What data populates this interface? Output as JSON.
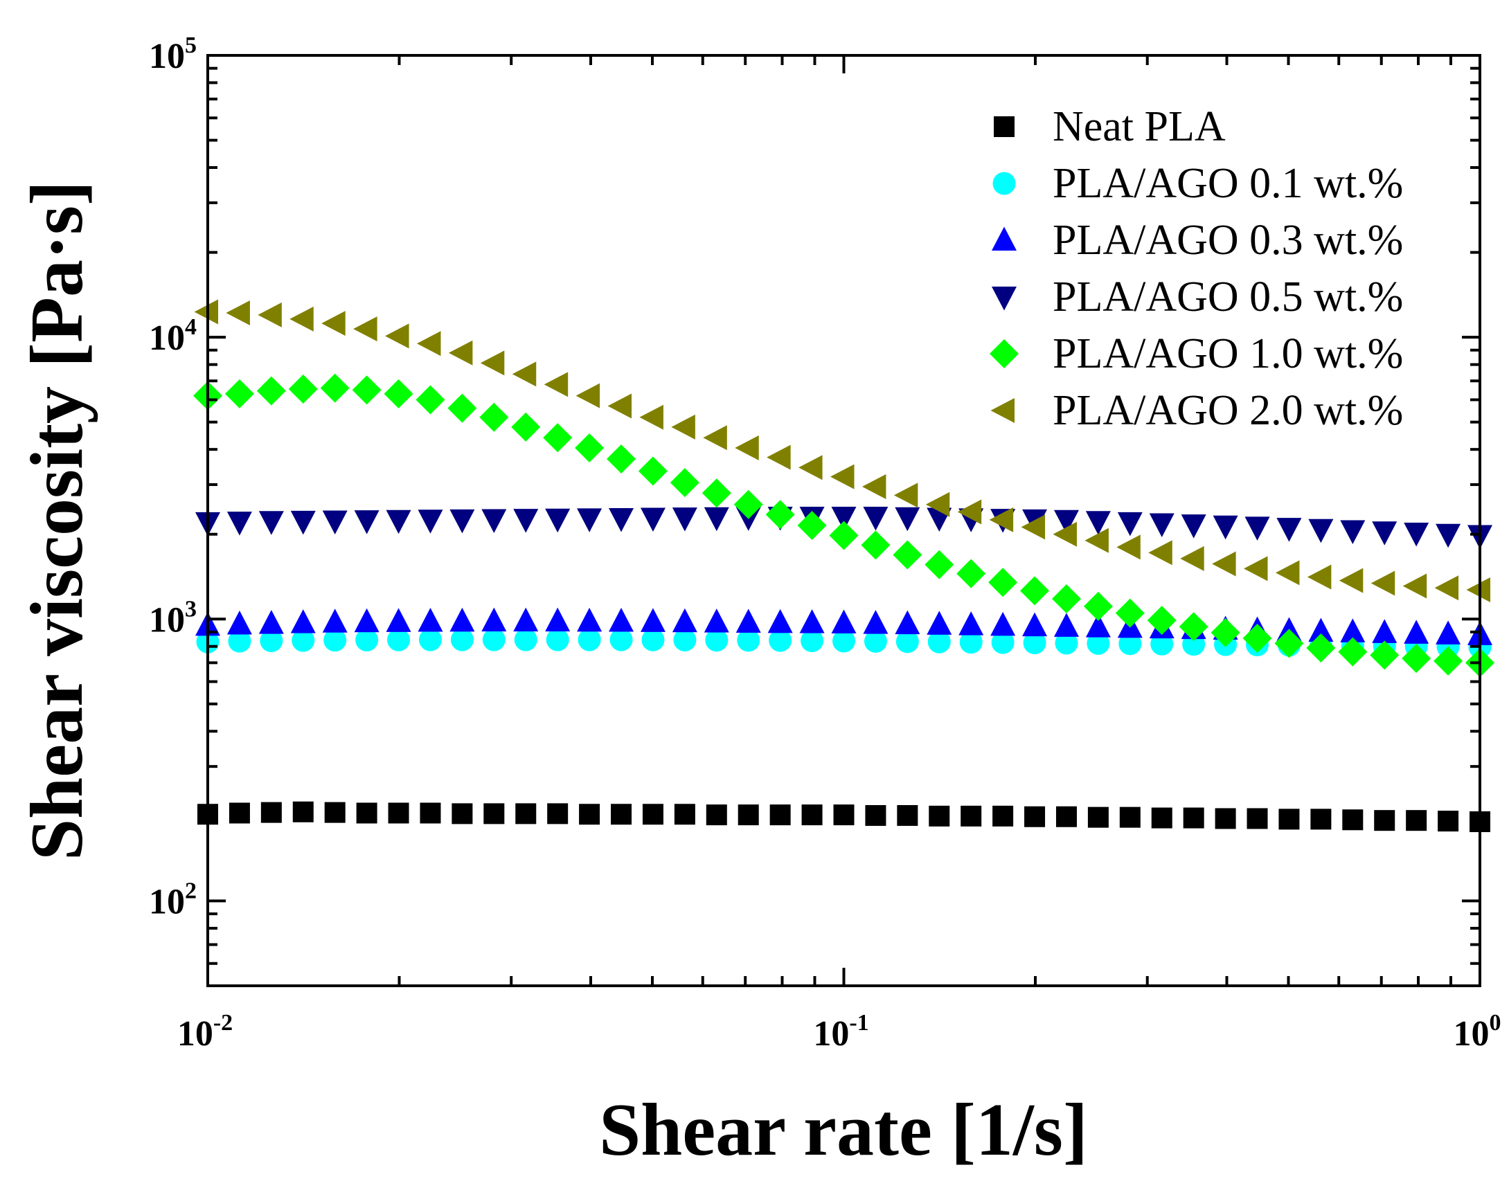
{
  "chart_data": {
    "type": "scatter",
    "xscale": "log",
    "yscale": "log",
    "xlim": [
      0.01,
      1
    ],
    "ylim": [
      50,
      100000
    ],
    "xlabel": "Shear rate [1/s]",
    "ylabel": "Shear viscosity [Pa·s]",
    "xticks": [
      {
        "value": 0.01,
        "base": "10",
        "exp": "-2"
      },
      {
        "value": 0.1,
        "base": "10",
        "exp": "-1"
      },
      {
        "value": 1,
        "base": "10",
        "exp": "0"
      }
    ],
    "yticks": [
      {
        "value": 100,
        "base": "10",
        "exp": "2"
      },
      {
        "value": 1000,
        "base": "10",
        "exp": "3"
      },
      {
        "value": 10000,
        "base": "10",
        "exp": "4"
      },
      {
        "value": 100000,
        "base": "10",
        "exp": "5"
      }
    ],
    "legend_position": "top-right",
    "n_points": 41,
    "series": [
      {
        "name": "Neat PLA",
        "color": "#000000",
        "marker": "square",
        "values": [
          203,
          205,
          206,
          207,
          206,
          205,
          205,
          205,
          204,
          204,
          204,
          204,
          203,
          203,
          203,
          203,
          202,
          202,
          202,
          202,
          202,
          201,
          201,
          200,
          200,
          200,
          199,
          199,
          198,
          198,
          197,
          197,
          196,
          196,
          195,
          195,
          194,
          193,
          193,
          192,
          191
        ]
      },
      {
        "name": "PLA/AGO 0.1 wt.%",
        "color": "#00FFFF",
        "marker": "circle",
        "values": [
          830,
          835,
          838,
          840,
          842,
          843,
          844,
          845,
          845,
          845,
          845,
          845,
          845,
          845,
          844,
          843,
          842,
          841,
          840,
          838,
          836,
          834,
          832,
          830,
          828,
          826,
          824,
          822,
          820,
          818,
          816,
          814,
          812,
          810,
          808,
          806,
          804,
          802,
          800,
          798,
          796
        ]
      },
      {
        "name": "PLA/AGO 0.3 wt.%",
        "color": "#0000FF",
        "marker": "triangle-up",
        "values": [
          950,
          960,
          965,
          970,
          975,
          978,
          980,
          982,
          983,
          984,
          984,
          984,
          983,
          982,
          980,
          978,
          976,
          974,
          972,
          970,
          968,
          965,
          962,
          958,
          954,
          950,
          946,
          942,
          938,
          934,
          930,
          925,
          920,
          915,
          910,
          905,
          900,
          895,
          890,
          885,
          880
        ]
      },
      {
        "name": "PLA/AGO 0.5 wt.%",
        "color": "#000080",
        "marker": "triangle-down",
        "values": [
          2200,
          2210,
          2220,
          2225,
          2230,
          2235,
          2240,
          2245,
          2250,
          2255,
          2260,
          2265,
          2270,
          2275,
          2280,
          2285,
          2290,
          2295,
          2300,
          2300,
          2300,
          2300,
          2290,
          2280,
          2270,
          2260,
          2250,
          2240,
          2220,
          2200,
          2180,
          2160,
          2140,
          2120,
          2100,
          2080,
          2060,
          2040,
          2020,
          2000,
          1980
        ]
      },
      {
        "name": "PLA/AGO 1.0 wt.%",
        "color": "#00FF00",
        "marker": "diamond",
        "values": [
          6200,
          6300,
          6450,
          6550,
          6600,
          6500,
          6300,
          6000,
          5600,
          5200,
          4800,
          4400,
          4050,
          3700,
          3350,
          3050,
          2800,
          2550,
          2350,
          2150,
          1980,
          1830,
          1690,
          1560,
          1450,
          1350,
          1260,
          1180,
          1110,
          1050,
          990,
          940,
          895,
          855,
          820,
          790,
          765,
          745,
          725,
          710,
          700
        ]
      },
      {
        "name": "PLA/AGO 2.0 wt.%",
        "color": "#808000",
        "marker": "triangle-left",
        "values": [
          12300,
          12200,
          12000,
          11600,
          11200,
          10700,
          10100,
          9500,
          8800,
          8100,
          7400,
          6800,
          6200,
          5700,
          5200,
          4800,
          4400,
          4050,
          3750,
          3450,
          3200,
          2950,
          2750,
          2550,
          2400,
          2250,
          2120,
          2000,
          1900,
          1800,
          1720,
          1640,
          1570,
          1510,
          1460,
          1410,
          1370,
          1340,
          1310,
          1290,
          1270
        ]
      }
    ]
  }
}
